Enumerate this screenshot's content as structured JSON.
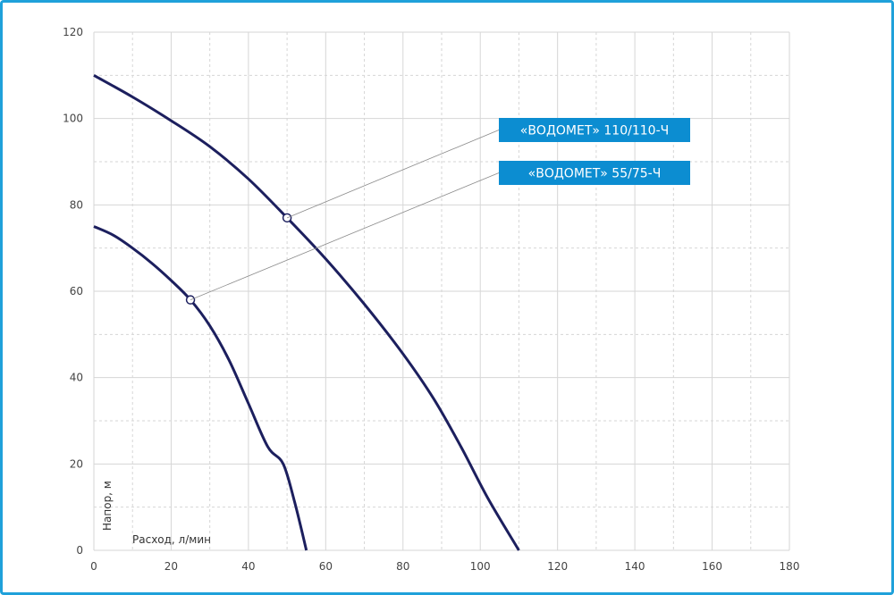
{
  "chart_data": {
    "type": "line",
    "xlabel": "Расход, л/мин",
    "ylabel": "Напор, м",
    "xlim": [
      0,
      180
    ],
    "ylim": [
      0,
      120
    ],
    "xticks": [
      0,
      20,
      40,
      60,
      80,
      100,
      120,
      140,
      160,
      180
    ],
    "yticks": [
      0,
      20,
      40,
      60,
      80,
      100,
      120
    ],
    "grid": true,
    "series": [
      {
        "name": "«ВОДОМЕТ» 110/110-Ч",
        "x": [
          0,
          10,
          20,
          30,
          40,
          50,
          60,
          70,
          80,
          88,
          95,
          102,
          110
        ],
        "y": [
          110,
          105,
          99.5,
          93.5,
          86,
          77,
          67.5,
          57,
          45.5,
          35,
          24,
          12,
          0
        ],
        "marker": {
          "x": 50,
          "y": 77
        }
      },
      {
        "name": "«ВОДОМЕТ» 55/75-Ч",
        "x": [
          0,
          5,
          10,
          15,
          20,
          25,
          30,
          35,
          40,
          45,
          49,
          52,
          55
        ],
        "y": [
          75,
          73,
          70,
          66.5,
          62.5,
          58,
          52,
          44,
          34,
          24,
          20,
          11,
          0
        ],
        "marker": {
          "x": 25,
          "y": 58
        }
      }
    ],
    "legend": "right"
  },
  "colors": {
    "line": "#1c1f5e",
    "legend_bg": "#0c8dd1",
    "grid": "#d6d6d6",
    "frame": "#1fa1da"
  }
}
